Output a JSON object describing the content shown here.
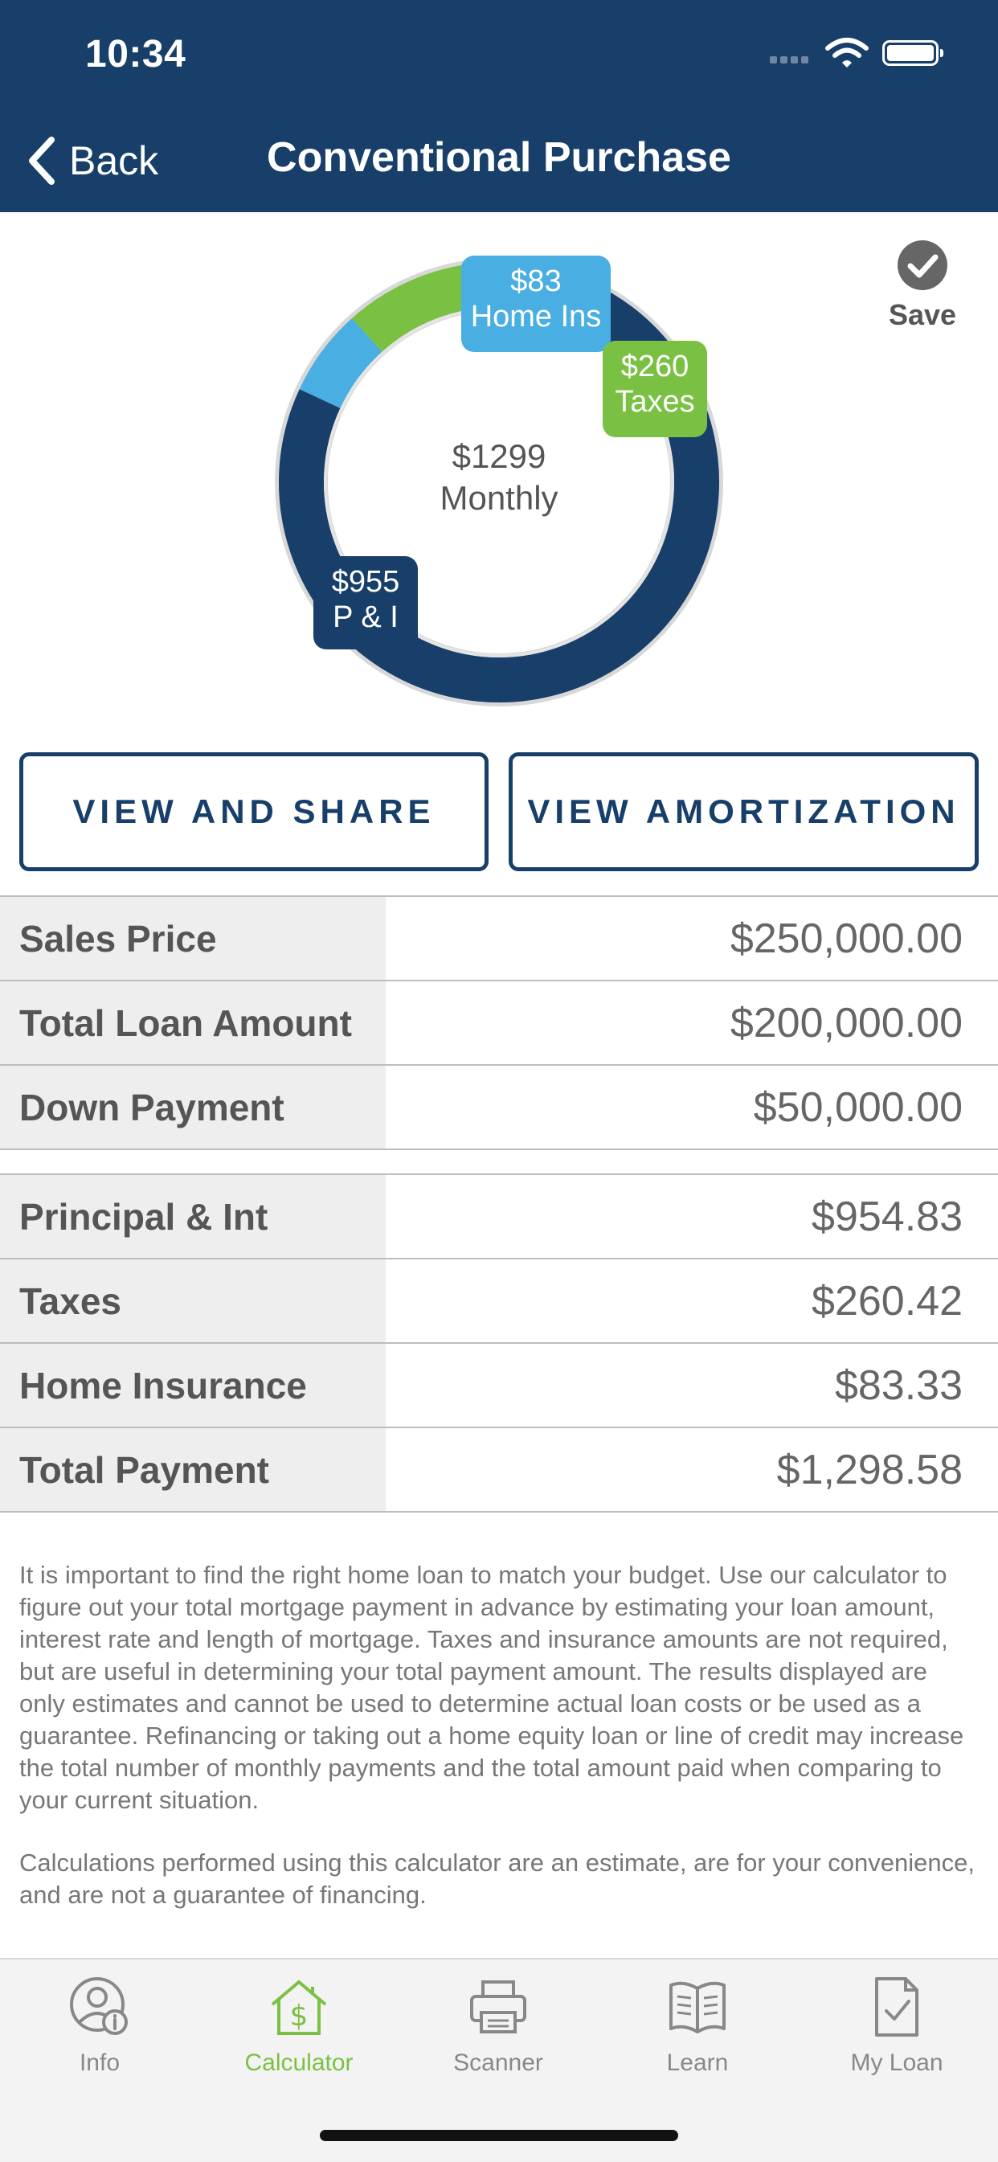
{
  "status": {
    "time": "10:34"
  },
  "nav": {
    "back_label": "Back",
    "title": "Conventional Purchase"
  },
  "chart_data": {
    "type": "pie",
    "style": "donut",
    "center_value": "$1299",
    "center_label": "Monthly",
    "slices": [
      {
        "name": "P & I",
        "label": "$955",
        "value": 954.83,
        "color": "#173f69"
      },
      {
        "name": "Taxes",
        "label": "$260",
        "value": 260.42,
        "color": "#7ac143"
      },
      {
        "name": "Home Ins",
        "label": "$83",
        "value": 83.33,
        "color": "#49aee2"
      }
    ]
  },
  "save": {
    "label": "Save"
  },
  "actions": {
    "view_share": "VIEW AND SHARE",
    "view_amortization": "VIEW AMORTIZATION"
  },
  "loan_rows": [
    {
      "label": "Sales Price",
      "value": "$250,000.00"
    },
    {
      "label": "Total Loan Amount",
      "value": "$200,000.00"
    },
    {
      "label": "Down Payment",
      "value": "$50,000.00"
    }
  ],
  "payment_rows": [
    {
      "label": "Principal & Int",
      "value": "$954.83"
    },
    {
      "label": "Taxes",
      "value": "$260.42"
    },
    {
      "label": "Home Insurance",
      "value": "$83.33"
    },
    {
      "label": "Total Payment",
      "value": "$1,298.58"
    }
  ],
  "disclaimer": {
    "p1": "It is important to find the right home loan to match your budget. Use our calculator to figure out your total mortgage payment in advance by estimating your loan amount, interest rate and length of mortgage. Taxes and insurance amounts are not required, but are useful in determining your total payment amount.  The results displayed are only estimates and cannot be used to determine actual loan costs or be used as a guarantee. Refinancing or taking out a home equity loan or line of credit may increase the total number of monthly payments and the total amount paid when comparing to your current situation.",
    "p2": "Calculations performed using this calculator are an estimate, are for your convenience, and are not a guarantee of financing."
  },
  "tabs": [
    {
      "label": "Info",
      "icon": "person-info-icon"
    },
    {
      "label": "Calculator",
      "icon": "house-dollar-icon",
      "active": true
    },
    {
      "label": "Scanner",
      "icon": "printer-icon"
    },
    {
      "label": "Learn",
      "icon": "book-icon"
    },
    {
      "label": "My Loan",
      "icon": "document-check-icon"
    }
  ]
}
